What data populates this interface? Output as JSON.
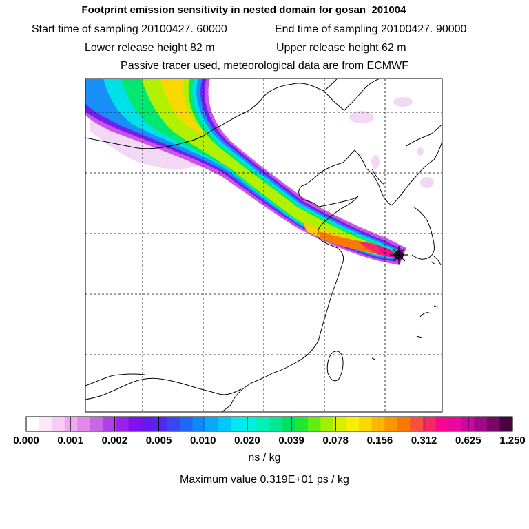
{
  "header": {
    "title": "Footprint emission sensitivity in nested domain for gosan_201004",
    "start_label": "Start time of sampling 20100427. 60000",
    "end_label": "End time of sampling 20100427. 90000",
    "lower_label": "Lower release height   82 m",
    "upper_label": "Upper release height   62 m",
    "tracer_note": "Passive tracer used, meteorological data are from ECMWF"
  },
  "colorbar": {
    "ticks": [
      "0.000",
      "0.001",
      "0.002",
      "0.005",
      "0.010",
      "0.020",
      "0.039",
      "0.078",
      "0.156",
      "0.312",
      "0.625",
      "1.250"
    ],
    "colors": [
      "#ffffff",
      "#fbe9fb",
      "#f5ccf5",
      "#eeaaf0",
      "#e08ae8",
      "#c966e4",
      "#b040e8",
      "#9a20ec",
      "#8010f0",
      "#6818f0",
      "#5028f0",
      "#3848f4",
      "#2068f8",
      "#1088f8",
      "#08a8f8",
      "#00c8f8",
      "#00e8f0",
      "#00f0e0",
      "#00f0b8",
      "#00e890",
      "#00e060",
      "#20e830",
      "#60f010",
      "#a0f000",
      "#d8f000",
      "#f8f000",
      "#f8d800",
      "#f8b800",
      "#f89800",
      "#f87800",
      "#f85040",
      "#f82868",
      "#f80890",
      "#e8089c",
      "#c808a0",
      "#a00888",
      "#780868",
      "#480040"
    ],
    "unit": "ns / kg",
    "max_value_text": "Maximum value  0.319E+01 ps / kg"
  }
}
